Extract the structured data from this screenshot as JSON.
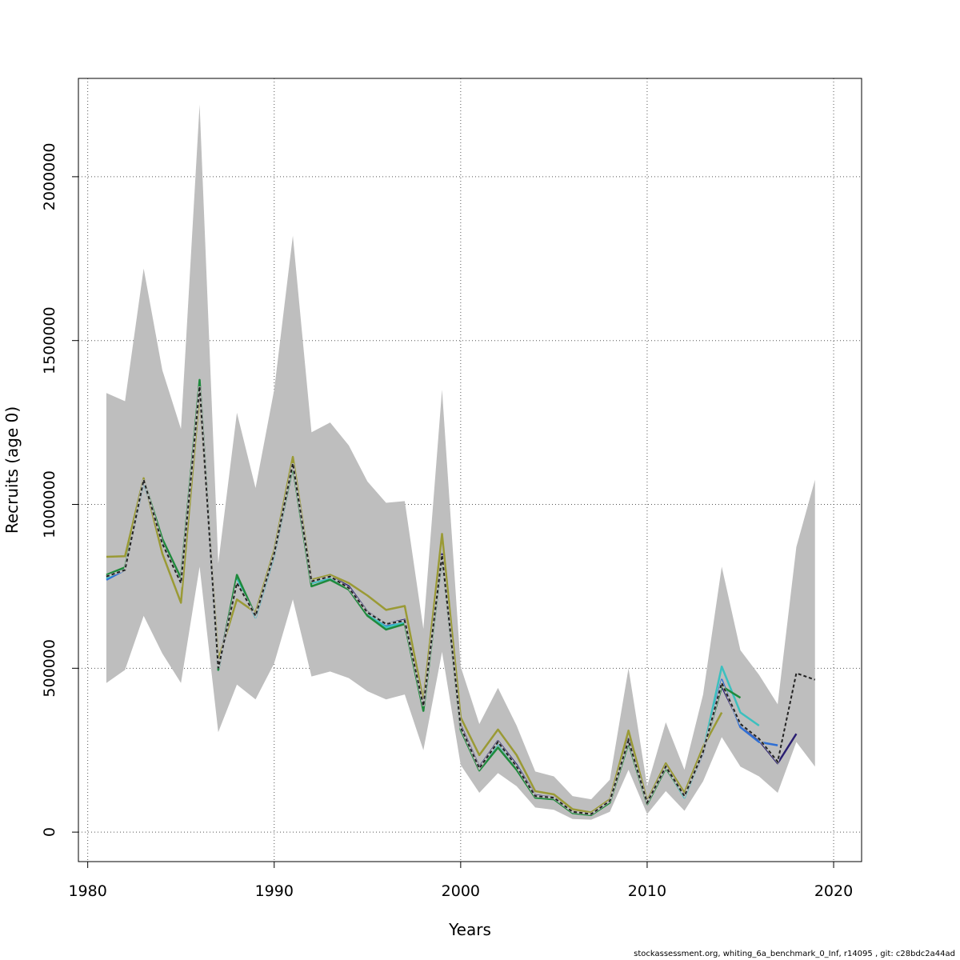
{
  "chart_data": {
    "type": "line",
    "xlabel": "Years",
    "ylabel": "Recruits (age 0)",
    "xlim": [
      1979.5,
      2021.5
    ],
    "ylim": [
      -90000,
      2300000
    ],
    "xticks": [
      1980,
      1990,
      2000,
      2010,
      2020
    ],
    "yticks": [
      0,
      500000,
      1000000,
      1500000,
      2000000
    ],
    "grid": true,
    "band": {
      "x": [
        1981,
        1982,
        1983,
        1984,
        1985,
        1986,
        1987,
        1988,
        1989,
        1990,
        1991,
        1992,
        1993,
        1994,
        1995,
        1996,
        1997,
        1998,
        1999,
        2000,
        2001,
        2002,
        2003,
        2004,
        2005,
        2006,
        2007,
        2008,
        2009,
        2010,
        2011,
        2012,
        2013,
        2014,
        2015,
        2016,
        2017,
        2018,
        2019
      ],
      "upper": [
        1340000,
        1315000,
        1720000,
        1410000,
        1230000,
        2220000,
        820000,
        1280000,
        1050000,
        1350000,
        1820000,
        1220000,
        1250000,
        1180000,
        1070000,
        1005000,
        1010000,
        620000,
        1350000,
        505000,
        330000,
        440000,
        325000,
        185000,
        170000,
        110000,
        100000,
        160000,
        500000,
        140000,
        335000,
        190000,
        420000,
        810000,
        555000,
        480000,
        390000,
        870000,
        1075000
      ],
      "lower": [
        455000,
        495000,
        660000,
        545000,
        455000,
        810000,
        305000,
        450000,
        405000,
        515000,
        710000,
        475000,
        490000,
        470000,
        430000,
        405000,
        420000,
        250000,
        550000,
        205000,
        120000,
        180000,
        140000,
        75000,
        68000,
        40000,
        38000,
        62000,
        190000,
        55000,
        125000,
        65000,
        155000,
        290000,
        200000,
        170000,
        120000,
        275000,
        200000
      ]
    },
    "series": [
      {
        "color": "#222222",
        "dashed": true,
        "x": [
          1981,
          1982,
          1983,
          1984,
          1985,
          1986,
          1987,
          1988,
          1989,
          1990,
          1991,
          1992,
          1993,
          1994,
          1995,
          1996,
          1997,
          1998,
          1999,
          2000,
          2001,
          2002,
          2003,
          2004,
          2005,
          2006,
          2007,
          2008,
          2009,
          2010,
          2011,
          2012,
          2013,
          2014,
          2015,
          2016,
          2017,
          2018,
          2019
        ],
        "values": [
          780000,
          800000,
          1075000,
          880000,
          760000,
          1360000,
          500000,
          760000,
          660000,
          850000,
          1125000,
          765000,
          780000,
          745000,
          670000,
          635000,
          645000,
          385000,
          845000,
          320000,
          195000,
          275000,
          200000,
          110000,
          105000,
          62000,
          55000,
          95000,
          280000,
          90000,
          200000,
          110000,
          245000,
          455000,
          330000,
          285000,
          215000,
          485000,
          465000
        ]
      },
      {
        "color": "#2a1e72",
        "dashed": false,
        "x": [
          1981,
          1982,
          1983,
          1984,
          1985,
          1986,
          1987,
          1988,
          1989,
          1990,
          1991,
          1992,
          1993,
          1994,
          1995,
          1996,
          1997,
          1998,
          1999,
          2000,
          2001,
          2002,
          2003,
          2004,
          2005,
          2006,
          2007,
          2008,
          2009,
          2010,
          2011,
          2012,
          2013,
          2014,
          2015,
          2016,
          2017,
          2018
        ],
        "values": [
          780000,
          805000,
          1072000,
          890000,
          770000,
          1370000,
          500000,
          780000,
          660000,
          848000,
          1122000,
          765000,
          780000,
          750000,
          672000,
          635000,
          648000,
          380000,
          848000,
          325000,
          198000,
          278000,
          205000,
          112000,
          106000,
          62000,
          55000,
          95000,
          285000,
          90000,
          200000,
          110000,
          245000,
          445000,
          330000,
          280000,
          210000,
          300000
        ]
      },
      {
        "color": "#2f6fd4",
        "dashed": false,
        "x": [
          1981,
          1982,
          1983,
          1984,
          1985,
          1986,
          1987,
          1988,
          1989,
          1990,
          1991,
          1992,
          1993,
          1994,
          1995,
          1996,
          1997,
          1998,
          1999,
          2000,
          2001,
          2002,
          2003,
          2004,
          2005,
          2006,
          2007,
          2008,
          2009,
          2010,
          2011,
          2012,
          2013,
          2014,
          2015,
          2016,
          2017
        ],
        "values": [
          770000,
          800000,
          1070000,
          880000,
          760000,
          1360000,
          495000,
          770000,
          655000,
          845000,
          1118000,
          760000,
          775000,
          745000,
          668000,
          630000,
          642000,
          378000,
          842000,
          318000,
          195000,
          272000,
          202000,
          110000,
          104000,
          61000,
          54000,
          93000,
          280000,
          88000,
          198000,
          108000,
          242000,
          465000,
          320000,
          275000,
          265000
        ]
      },
      {
        "color": "#3bc0bf",
        "dashed": false,
        "x": [
          1981,
          1982,
          1983,
          1984,
          1985,
          1986,
          1987,
          1988,
          1989,
          1990,
          1991,
          1992,
          1993,
          1994,
          1995,
          1996,
          1997,
          1998,
          1999,
          2000,
          2001,
          2002,
          2003,
          2004,
          2005,
          2006,
          2007,
          2008,
          2009,
          2010,
          2011,
          2012,
          2013,
          2014,
          2015,
          2016
        ],
        "values": [
          775000,
          805000,
          1070000,
          880000,
          760000,
          1365000,
          495000,
          775000,
          655000,
          845000,
          1120000,
          760000,
          775000,
          742000,
          665000,
          625000,
          640000,
          375000,
          840000,
          320000,
          192000,
          270000,
          200000,
          108000,
          102000,
          60000,
          53000,
          92000,
          278000,
          88000,
          198000,
          105000,
          245000,
          505000,
          365000,
          325000
        ]
      },
      {
        "color": "#1f8a3c",
        "dashed": false,
        "x": [
          1981,
          1982,
          1983,
          1984,
          1985,
          1986,
          1987,
          1988,
          1989,
          1990,
          1991,
          1992,
          1993,
          1994,
          1995,
          1996,
          1997,
          1998,
          1999,
          2000,
          2001,
          2002,
          2003,
          2004,
          2005,
          2006,
          2007,
          2008,
          2009,
          2010,
          2011,
          2012,
          2013,
          2014,
          2015
        ],
        "values": [
          785000,
          808000,
          1075000,
          895000,
          775000,
          1380000,
          495000,
          785000,
          660000,
          850000,
          1115000,
          750000,
          770000,
          740000,
          660000,
          618000,
          635000,
          370000,
          840000,
          312000,
          188000,
          258000,
          190000,
          105000,
          100000,
          58000,
          52000,
          90000,
          272000,
          85000,
          195000,
          110000,
          245000,
          445000,
          410000
        ]
      },
      {
        "color": "#9a9a35",
        "dashed": false,
        "x": [
          1981,
          1982,
          1983,
          1984,
          1985,
          1986,
          1987,
          1988,
          1989,
          1990,
          1991,
          1992,
          1993,
          1994,
          1995,
          1996,
          1997,
          1998,
          1999,
          2000,
          2001,
          2002,
          2003,
          2004,
          2005,
          2006,
          2007,
          2008,
          2009,
          2010,
          2011,
          2012,
          2013,
          2014
        ],
        "values": [
          840000,
          842000,
          1080000,
          850000,
          700000,
          1340000,
          525000,
          710000,
          670000,
          860000,
          1145000,
          770000,
          785000,
          760000,
          722000,
          678000,
          690000,
          400000,
          910000,
          350000,
          235000,
          313000,
          235000,
          125000,
          115000,
          70000,
          60000,
          100000,
          310000,
          95000,
          210000,
          120000,
          260000,
          365000
        ]
      }
    ]
  },
  "footer": "stockassessment.org, whiting_6a_benchmark_0_Inf, r14095 , git: c28bdc2a44ad"
}
